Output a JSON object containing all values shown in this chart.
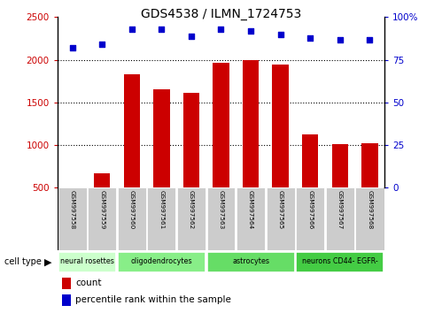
{
  "title": "GDS4538 / ILMN_1724753",
  "samples": [
    "GSM997558",
    "GSM997559",
    "GSM997560",
    "GSM997561",
    "GSM997562",
    "GSM997563",
    "GSM997564",
    "GSM997565",
    "GSM997566",
    "GSM997567",
    "GSM997568"
  ],
  "counts": [
    500,
    670,
    1830,
    1660,
    1610,
    1970,
    2000,
    1940,
    1130,
    1010,
    1020
  ],
  "percentiles": [
    82,
    84,
    93,
    93,
    89,
    93,
    92,
    90,
    88,
    87,
    87
  ],
  "cell_types": [
    {
      "label": "neural rosettes",
      "start": 0,
      "end": 2,
      "color": "#ccffcc"
    },
    {
      "label": "oligodendrocytes",
      "start": 2,
      "end": 5,
      "color": "#88ee88"
    },
    {
      "label": "astrocytes",
      "start": 5,
      "end": 8,
      "color": "#66dd66"
    },
    {
      "label": "neurons CD44- EGFR-",
      "start": 8,
      "end": 11,
      "color": "#44cc44"
    }
  ],
  "ylim_left": [
    500,
    2500
  ],
  "ylim_right": [
    0,
    100
  ],
  "bar_color": "#cc0000",
  "dot_color": "#0000cc",
  "bg_color": "#ffffff",
  "sample_box_color": "#cccccc",
  "left_tick_labels": [
    "500",
    "1000",
    "1500",
    "2000",
    "2500"
  ],
  "left_tick_vals": [
    500,
    1000,
    1500,
    2000,
    2500
  ],
  "right_tick_labels": [
    "0",
    "25",
    "50",
    "75",
    "100%"
  ],
  "right_tick_vals": [
    0,
    25,
    50,
    75,
    100
  ],
  "spine_color": "#000000"
}
